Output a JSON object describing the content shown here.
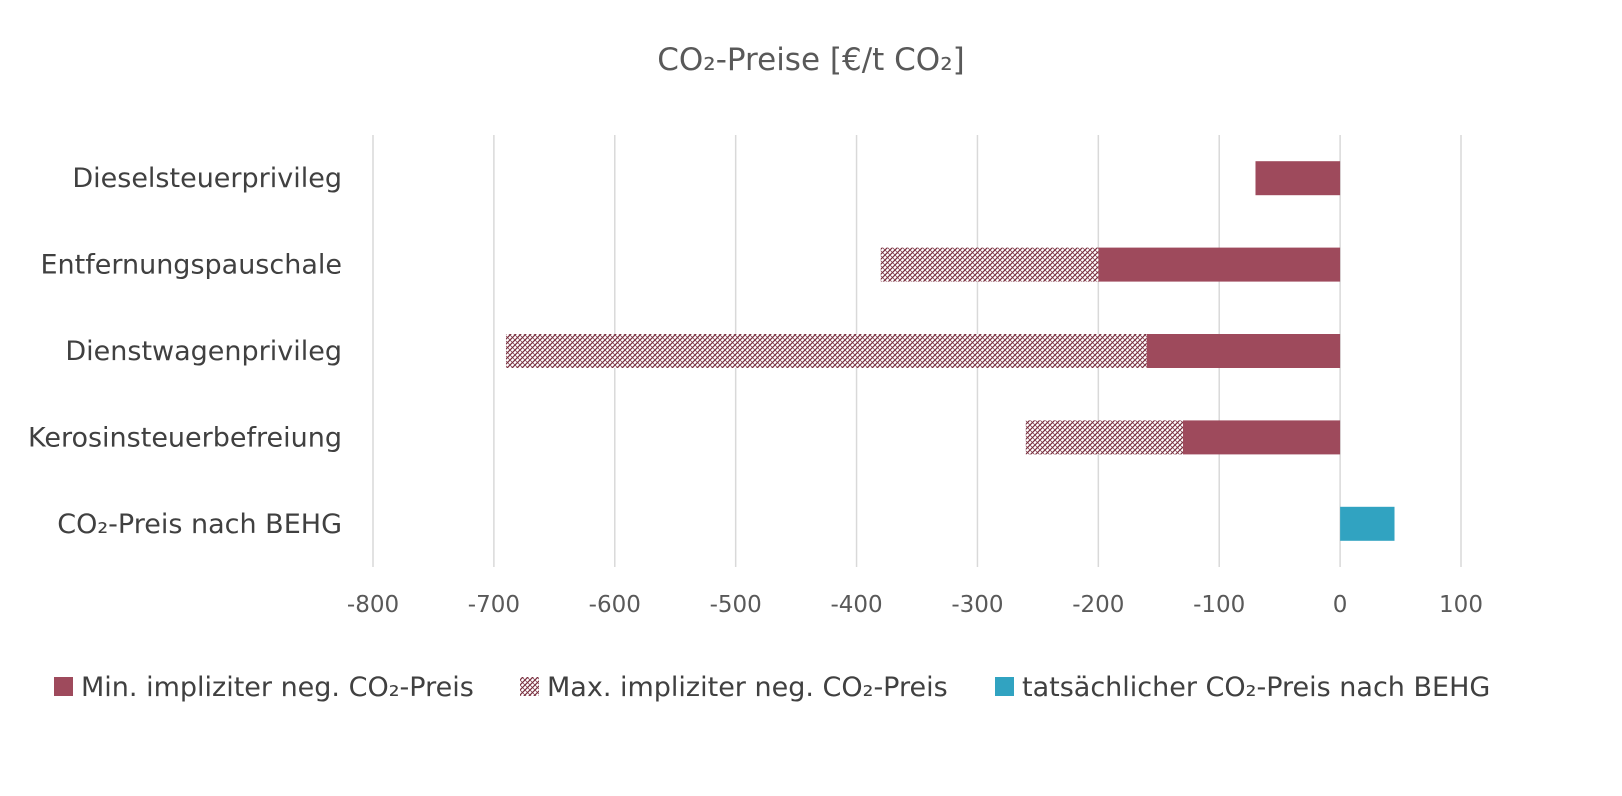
{
  "chart_data": {
    "type": "bar",
    "orientation": "horizontal",
    "stacked": true,
    "title": "CO₂-Preise [€/t CO₂]",
    "categories": [
      "Dieselsteuerprivileg",
      "Entfernungspauschale",
      "Dienstwagenprivileg",
      "Kerosinsteuerbefreiung",
      "CO₂-Preis nach BEHG"
    ],
    "series": [
      {
        "name": "Min. impliziter neg. CO₂-Preis",
        "values": [
          -70,
          -200,
          -160,
          -130,
          null
        ],
        "color": "#9E4A5C",
        "pattern": "solid"
      },
      {
        "name": "Max. impliziter neg. CO₂-Preis",
        "values": [
          null,
          -180,
          -530,
          -130,
          null
        ],
        "color": "#9E4A5C",
        "pattern": "hatched"
      },
      {
        "name": "tatsächlicher CO₂-Preis nach BEHG",
        "values": [
          null,
          null,
          null,
          null,
          45
        ],
        "color": "#31A3C1",
        "pattern": "solid"
      }
    ],
    "xlim": [
      -800,
      100
    ],
    "xticks": [
      "-800",
      "-700",
      "-600",
      "-500",
      "-400",
      "-300",
      "-200",
      "-100",
      "0",
      "100"
    ],
    "xtick_values": [
      -800,
      -700,
      -600,
      -500,
      -400,
      -300,
      -200,
      -100,
      0,
      100
    ],
    "grid": true,
    "legend_position": "bottom"
  }
}
